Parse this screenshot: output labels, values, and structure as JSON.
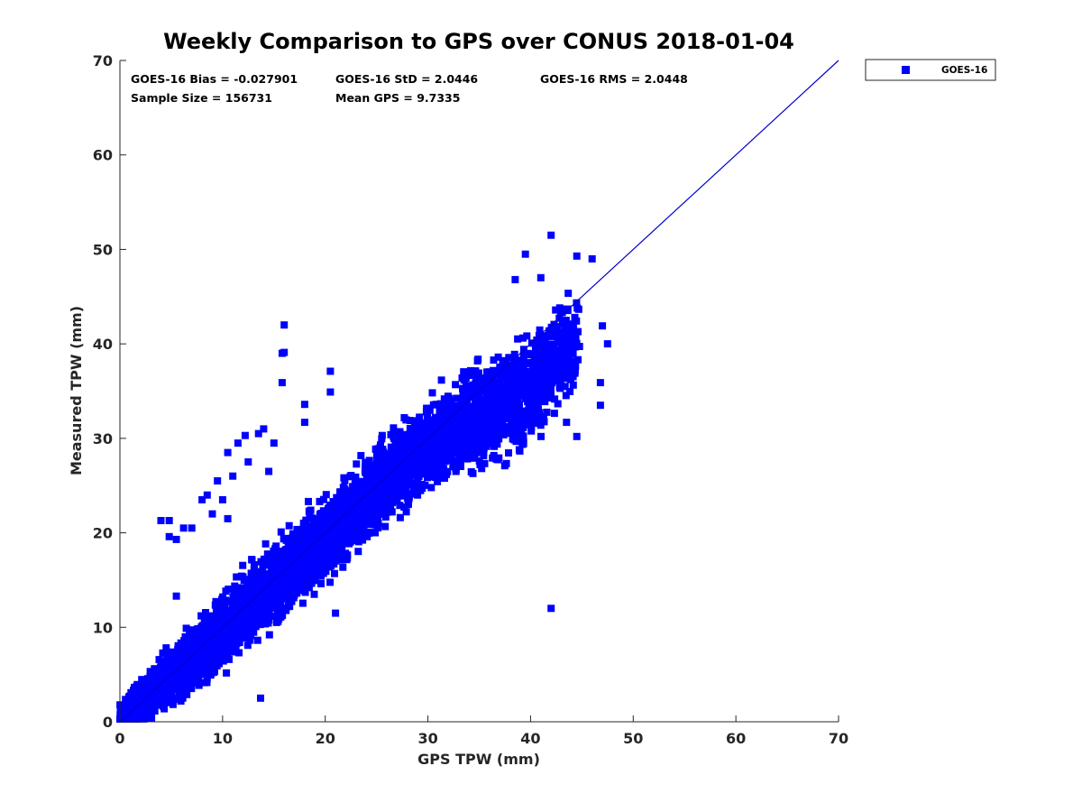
{
  "chart_data": {
    "type": "scatter",
    "title": "Weekly Comparison to GPS over CONUS 2018-01-04",
    "xlabel": "GPS TPW (mm)",
    "ylabel": "Measured TPW (mm)",
    "xlim": [
      0,
      70
    ],
    "ylim": [
      0,
      70
    ],
    "xticks": [
      "0",
      "10",
      "20",
      "30",
      "40",
      "50",
      "60",
      "70"
    ],
    "yticks": [
      "0",
      "10",
      "20",
      "30",
      "40",
      "50",
      "60",
      "70"
    ],
    "grid": false,
    "legend": {
      "position": "outside-top-right",
      "entries": [
        "GOES-16"
      ]
    },
    "stats": {
      "bias": "GOES-16 Bias = -0.027901",
      "std": "GOES-16 StD = 2.0446",
      "rms": "GOES-16 RMS = 2.0448",
      "sample_size": "Sample Size = 156731",
      "mean_gps": "Mean GPS = 9.7335"
    },
    "reference_line": {
      "from": [
        0,
        0
      ],
      "to": [
        70,
        70
      ],
      "color": "#0000cc"
    },
    "series": [
      {
        "name": "GOES-16",
        "color": "#0000ff",
        "marker": "square",
        "main_cloud": [
          {
            "x": 1,
            "y": 1.2,
            "spread": 1.5
          },
          {
            "x": 3,
            "y": 3.0,
            "spread": 2.0
          },
          {
            "x": 6,
            "y": 5.8,
            "spread": 2.5
          },
          {
            "x": 10,
            "y": 9.5,
            "spread": 3.0
          },
          {
            "x": 15,
            "y": 14.5,
            "spread": 3.5
          },
          {
            "x": 20,
            "y": 19.5,
            "spread": 3.5
          },
          {
            "x": 25,
            "y": 24.5,
            "spread": 3.5
          },
          {
            "x": 30,
            "y": 29.5,
            "spread": 4.0
          },
          {
            "x": 35,
            "y": 32.5,
            "spread": 4.5
          },
          {
            "x": 40,
            "y": 35.0,
            "spread": 4.5
          },
          {
            "x": 43,
            "y": 39.0,
            "spread": 4.0
          }
        ],
        "outliers": [
          {
            "x": 16.0,
            "y": 42.0
          },
          {
            "x": 16.0,
            "y": 39.1
          },
          {
            "x": 15.8,
            "y": 39.0
          },
          {
            "x": 15.8,
            "y": 35.9
          },
          {
            "x": 20.5,
            "y": 37.1
          },
          {
            "x": 20.5,
            "y": 34.9
          },
          {
            "x": 18.0,
            "y": 33.6
          },
          {
            "x": 18.0,
            "y": 31.7
          },
          {
            "x": 42.0,
            "y": 51.5
          },
          {
            "x": 42.0,
            "y": 12.0
          },
          {
            "x": 13.7,
            "y": 2.5
          },
          {
            "x": 21.0,
            "y": 11.5
          },
          {
            "x": 46.8,
            "y": 33.5
          },
          {
            "x": 46.8,
            "y": 35.9
          },
          {
            "x": 47.5,
            "y": 40.0
          },
          {
            "x": 47.0,
            "y": 41.9
          },
          {
            "x": 46.0,
            "y": 49.0
          },
          {
            "x": 44.5,
            "y": 49.3
          },
          {
            "x": 39.5,
            "y": 49.5
          },
          {
            "x": 41.0,
            "y": 47.0
          },
          {
            "x": 38.5,
            "y": 46.8
          },
          {
            "x": 44.5,
            "y": 30.2
          },
          {
            "x": 43.5,
            "y": 31.7
          },
          {
            "x": 4.0,
            "y": 21.3
          },
          {
            "x": 4.8,
            "y": 21.3
          },
          {
            "x": 4.8,
            "y": 19.6
          },
          {
            "x": 5.5,
            "y": 19.3
          },
          {
            "x": 6.2,
            "y": 20.5
          },
          {
            "x": 7.0,
            "y": 20.5
          },
          {
            "x": 5.5,
            "y": 13.3
          },
          {
            "x": 10.5,
            "y": 28.5
          },
          {
            "x": 11.5,
            "y": 29.5
          },
          {
            "x": 12.2,
            "y": 30.3
          },
          {
            "x": 13.5,
            "y": 30.5
          },
          {
            "x": 14.0,
            "y": 31.0
          },
          {
            "x": 15.0,
            "y": 29.5
          },
          {
            "x": 8.5,
            "y": 24.0
          },
          {
            "x": 9.5,
            "y": 25.5
          },
          {
            "x": 10.0,
            "y": 23.5
          },
          {
            "x": 11.0,
            "y": 26.0
          },
          {
            "x": 12.5,
            "y": 27.5
          },
          {
            "x": 14.5,
            "y": 26.5
          },
          {
            "x": 9.0,
            "y": 22.0
          },
          {
            "x": 10.5,
            "y": 21.5
          },
          {
            "x": 8.0,
            "y": 23.5
          }
        ]
      }
    ]
  }
}
